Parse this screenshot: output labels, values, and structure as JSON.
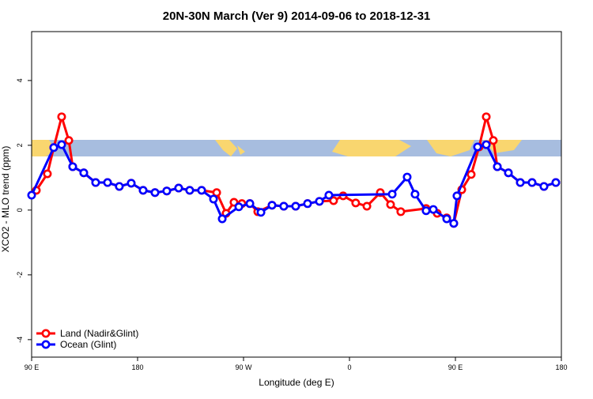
{
  "chart_data": {
    "type": "line",
    "title": "20N-30N March (Ver 9)   2014-09-06 to 2018-12-31",
    "x_label": "Longitude (deg E)",
    "y_label": "XCO2 - MLO trend (ppm)",
    "xlim": [
      90,
      540
    ],
    "ylim": [
      -4.54,
      5.51
    ],
    "xticks": [
      {
        "value": 90,
        "label": "90 E"
      },
      180,
      {
        "value": 270,
        "label": "90 W"
      },
      {
        "value": 360,
        "label": "0"
      },
      {
        "value": 450,
        "label": "90 E"
      },
      {
        "value": 540,
        "label": "180"
      }
    ],
    "yticks": [
      -4,
      -2,
      0,
      2,
      4
    ],
    "legend": "bottom-left",
    "series": [
      {
        "name": "Land (Nadir&Glint)",
        "color": "#ff0000",
        "x": [
          94.0,
          103.4,
          108.8,
          115.5,
          121.6,
          124.9,
          134.3,
          144.4,
          154.5,
          164.5,
          174.6,
          184.7,
          194.8,
          204.8,
          214.9,
          224.3,
          234.4,
          247.2,
          255.2,
          261.9,
          268.6,
          275.4,
          282.1,
          294.2,
          304.2,
          314.3,
          324.4,
          334.5,
          346.5,
          354.6,
          365.3,
          374.8,
          386.2,
          394.9,
          403.6,
          425.1,
          434.5,
          442.6,
          448.6,
          455.4,
          463.4,
          470.1,
          476.2,
          482.2,
          485.6,
          495.0,
          505.1,
          515.1,
          525.2,
          535.3
        ],
        "values": [
          0.61,
          1.12,
          1.93,
          2.88,
          2.15,
          1.34,
          1.15,
          0.85,
          0.85,
          0.73,
          0.83,
          0.61,
          0.54,
          0.59,
          0.68,
          0.61,
          0.61,
          0.54,
          -0.1,
          0.24,
          0.2,
          0.2,
          -0.05,
          0.15,
          0.12,
          0.12,
          0.2,
          0.27,
          0.29,
          0.44,
          0.22,
          0.12,
          0.54,
          0.17,
          -0.05,
          0.05,
          -0.1,
          -0.24,
          -0.41,
          0.63,
          1.1,
          1.95,
          2.88,
          2.15,
          1.34,
          1.15,
          0.85,
          0.85,
          0.73,
          0.85
        ]
      },
      {
        "name": "Ocean (Glint)",
        "color": "#0000ff",
        "x": [
          90.0,
          108.8,
          115.5,
          124.9,
          134.3,
          144.4,
          154.5,
          164.5,
          174.6,
          184.7,
          194.8,
          204.8,
          214.9,
          224.3,
          234.4,
          244.5,
          251.9,
          266.0,
          275.4,
          284.8,
          294.2,
          304.2,
          314.3,
          324.4,
          334.5,
          342.5,
          396.3,
          409.0,
          415.7,
          425.1,
          431.2,
          442.6,
          448.6,
          451.3,
          468.8,
          476.2,
          485.6,
          495.0,
          505.1,
          515.1,
          525.2,
          535.3
        ],
        "values": [
          0.46,
          1.93,
          2.02,
          1.34,
          1.15,
          0.85,
          0.85,
          0.73,
          0.83,
          0.61,
          0.54,
          0.59,
          0.68,
          0.61,
          0.61,
          0.34,
          -0.27,
          0.1,
          0.2,
          -0.07,
          0.15,
          0.12,
          0.12,
          0.2,
          0.27,
          0.46,
          0.49,
          1.02,
          0.49,
          -0.02,
          0.02,
          -0.27,
          -0.41,
          0.44,
          1.95,
          2.02,
          1.34,
          1.15,
          0.85,
          0.85,
          0.73,
          0.85
        ]
      }
    ]
  }
}
